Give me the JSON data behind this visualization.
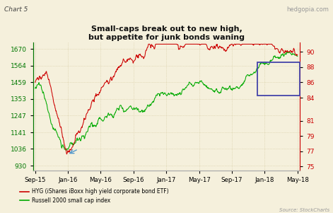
{
  "title": "Small-caps break out to new high,\nbut appetite for junk bonds waning",
  "chart_label": "Chart 5",
  "source": "Source: StockCharts",
  "watermark": "hedgopia.com",
  "left_yticks": [
    930,
    1036,
    1141,
    1247,
    1353,
    1459,
    1564,
    1670
  ],
  "right_yticks": [
    75,
    77,
    79,
    81,
    84,
    86,
    88,
    90
  ],
  "left_ylim": [
    900,
    1710
  ],
  "right_ylim": [
    74.5,
    91.2
  ],
  "xtick_labels": [
    "Sep-15",
    "Jan-16",
    "May-16",
    "Sep-16",
    "Jan-17",
    "May-17",
    "Sep-17",
    "Jan-18",
    "May-18"
  ],
  "bg_color": "#f5f0dc",
  "grid_color": "#d4c9a0",
  "line_color_hyg": "#cc0000",
  "line_color_rut": "#00aa00",
  "legend_hyg": "HYG (iShares iBoxx high yield corporate bond ETF)",
  "legend_rut": "Russell 2000 small cap index",
  "left_tick_color": "#007700",
  "right_tick_color": "#cc0000"
}
